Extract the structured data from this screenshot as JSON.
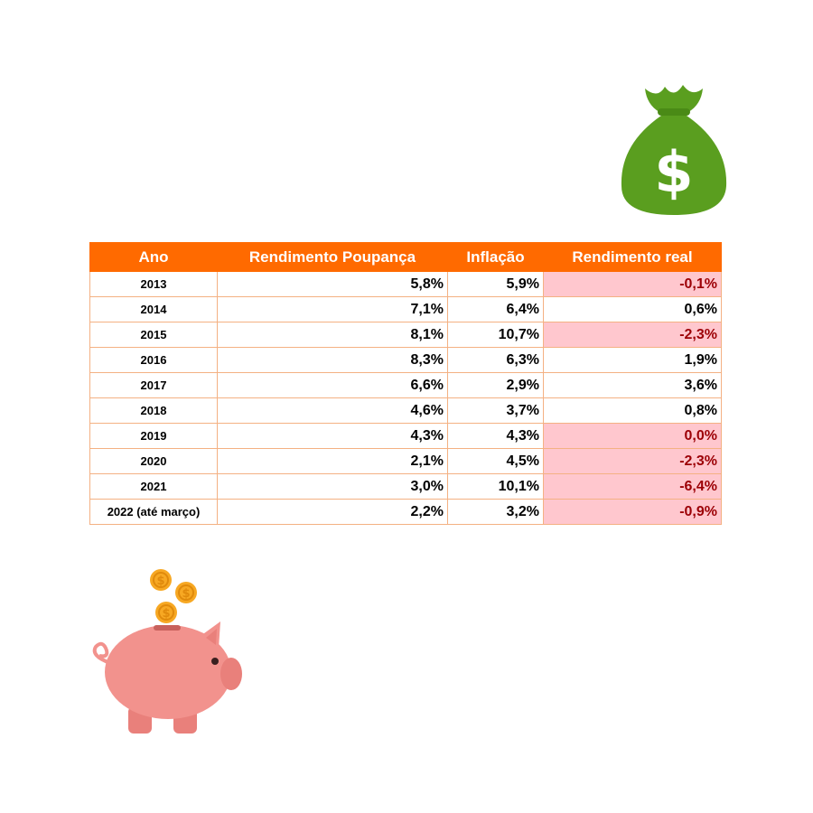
{
  "table": {
    "headers": [
      "Ano",
      "Rendimento Poupança",
      "Inflação",
      "Rendimento real"
    ],
    "rows": [
      {
        "ano": "2013",
        "poupanca": "5,8%",
        "inflacao": "5,9%",
        "real": "-0,1%",
        "highlight": true
      },
      {
        "ano": "2014",
        "poupanca": "7,1%",
        "inflacao": "6,4%",
        "real": "0,6%",
        "highlight": false
      },
      {
        "ano": "2015",
        "poupanca": "8,1%",
        "inflacao": "10,7%",
        "real": "-2,3%",
        "highlight": true
      },
      {
        "ano": "2016",
        "poupanca": "8,3%",
        "inflacao": "6,3%",
        "real": "1,9%",
        "highlight": false
      },
      {
        "ano": "2017",
        "poupanca": "6,6%",
        "inflacao": "2,9%",
        "real": "3,6%",
        "highlight": false
      },
      {
        "ano": "2018",
        "poupanca": "4,6%",
        "inflacao": "3,7%",
        "real": "0,8%",
        "highlight": false
      },
      {
        "ano": "2019",
        "poupanca": "4,3%",
        "inflacao": "4,3%",
        "real": "0,0%",
        "highlight": true
      },
      {
        "ano": "2020",
        "poupanca": "2,1%",
        "inflacao": "4,5%",
        "real": "-2,3%",
        "highlight": true
      },
      {
        "ano": "2021",
        "poupanca": "3,0%",
        "inflacao": "10,1%",
        "real": "-6,4%",
        "highlight": true
      },
      {
        "ano": "2022 (até março)",
        "poupanca": "2,2%",
        "inflacao": "3,2%",
        "real": "-0,9%",
        "highlight": true
      }
    ]
  },
  "colors": {
    "header_bg": "#ff6a00",
    "header_text": "#ffffff",
    "cell_border": "#f4b183",
    "highlight_bg": "#ffc7ce",
    "highlight_text": "#9c0006",
    "money_bag": "#5a9e1f",
    "piggy": "#f2928d",
    "coin": "#f7a823"
  },
  "icons": {
    "money_bag": "money-bag-icon",
    "piggy_bank": "piggy-bank-icon",
    "coin": "coin-icon"
  }
}
